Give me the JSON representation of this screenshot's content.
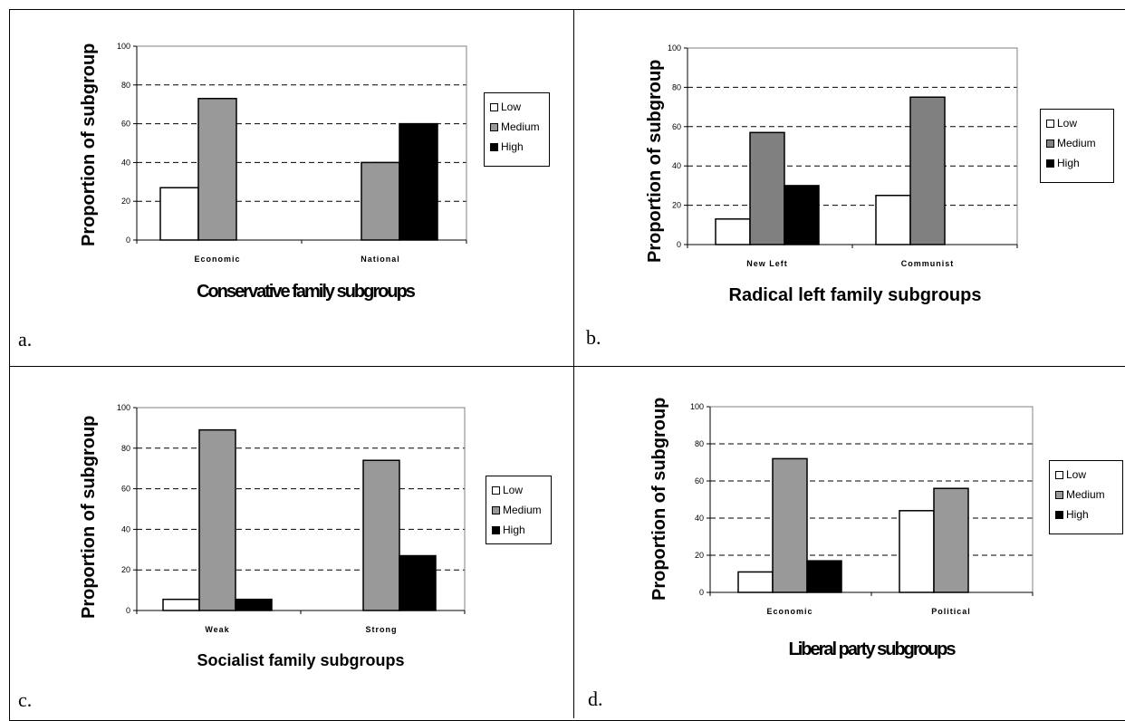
{
  "colors": {
    "low": "#ffffff",
    "medium": "#999999",
    "medium_b": "#808080",
    "high": "#000000"
  },
  "chart_data": [
    {
      "type": "bar",
      "panel_letter": "a.",
      "title": "Conservative family subgroups",
      "ylabel": "Proportion of subgroup",
      "xlabel": "Conservative family subgroups",
      "ylim": [
        0,
        100
      ],
      "yticks": [
        "0",
        "20",
        "40",
        "60",
        "80",
        "100"
      ],
      "categories": [
        "Economic",
        "National"
      ],
      "series": [
        {
          "name": "Low",
          "values": [
            27,
            0
          ]
        },
        {
          "name": "Medium",
          "values": [
            73,
            40
          ]
        },
        {
          "name": "High",
          "values": [
            0,
            60
          ]
        }
      ],
      "grid": true,
      "legend": "right"
    },
    {
      "type": "bar",
      "panel_letter": "b.",
      "title": "Radical left family subgroups",
      "ylabel": "Proportion of subgroup",
      "xlabel": "Radical left family subgroups",
      "ylim": [
        0,
        100
      ],
      "yticks": [
        "0",
        "20",
        "40",
        "60",
        "80",
        "100"
      ],
      "categories": [
        "New Left",
        "Communist"
      ],
      "series": [
        {
          "name": "Low",
          "values": [
            13,
            25
          ]
        },
        {
          "name": "Medium",
          "values": [
            57,
            75
          ]
        },
        {
          "name": "High",
          "values": [
            30,
            0
          ]
        }
      ],
      "grid": true,
      "legend": "right"
    },
    {
      "type": "bar",
      "panel_letter": "c.",
      "title": "Socialist family subgroups",
      "ylabel": "Proportion of subgroup",
      "xlabel": "Socialist family subgroups",
      "ylim": [
        0,
        100
      ],
      "yticks": [
        "0",
        "20",
        "40",
        "60",
        "80",
        "100"
      ],
      "categories": [
        "Weak",
        "Strong"
      ],
      "series": [
        {
          "name": "Low",
          "values": [
            5.5,
            0
          ]
        },
        {
          "name": "Medium",
          "values": [
            89,
            74
          ]
        },
        {
          "name": "High",
          "values": [
            5.5,
            27
          ]
        }
      ],
      "grid": true,
      "legend": "right"
    },
    {
      "type": "bar",
      "panel_letter": "d.",
      "title": "Liberal party subgroups",
      "ylabel": "Proportion of subgroup",
      "xlabel": "Liberal party subgroups",
      "ylim": [
        0,
        100
      ],
      "yticks": [
        "0",
        "20",
        "40",
        "60",
        "80",
        "100"
      ],
      "categories": [
        "Economic",
        "Political"
      ],
      "series": [
        {
          "name": "Low",
          "values": [
            11,
            44
          ]
        },
        {
          "name": "Medium",
          "values": [
            72,
            56
          ]
        },
        {
          "name": "High",
          "values": [
            17,
            0
          ]
        }
      ],
      "grid": true,
      "legend": "right"
    }
  ]
}
